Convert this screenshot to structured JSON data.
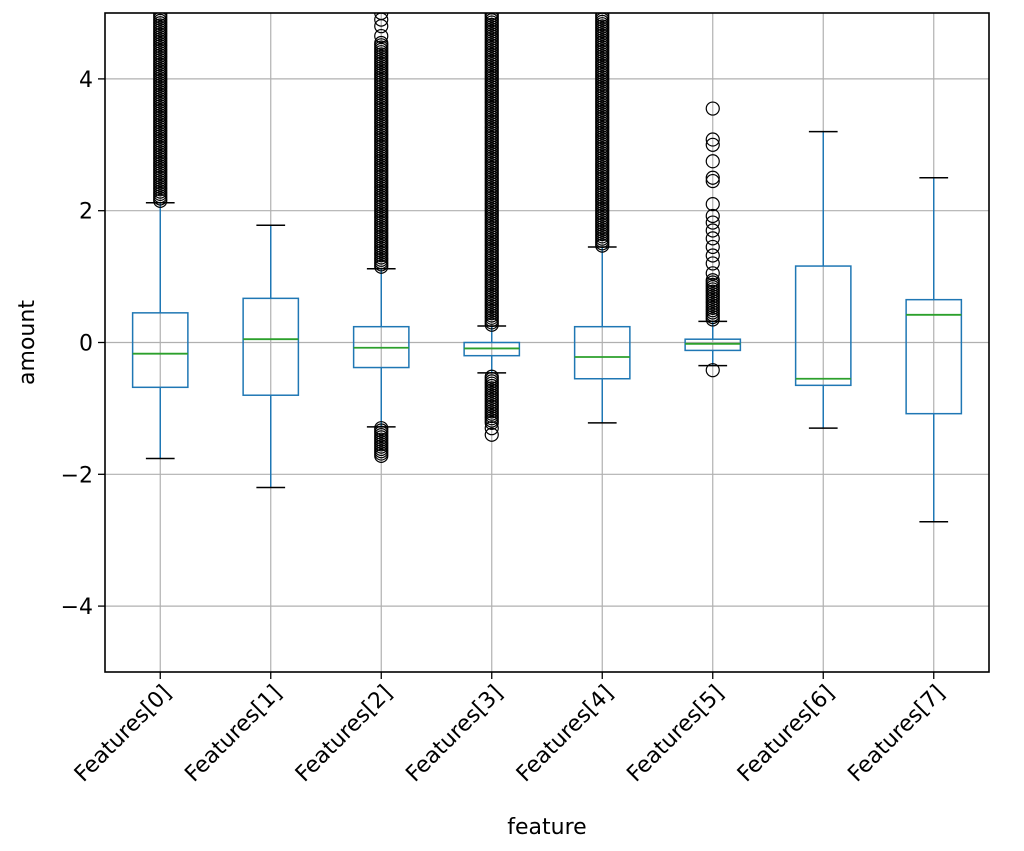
{
  "chart_data": {
    "type": "box",
    "title": "",
    "xlabel": "feature",
    "ylabel": "amount",
    "ylim": [
      -5,
      5
    ],
    "yticks": [
      -4,
      -2,
      0,
      2,
      4
    ],
    "ytick_labels": [
      "−4",
      "−2",
      "0",
      "2",
      "4"
    ],
    "grid": true,
    "categories": [
      "Features[0]",
      "Features[1]",
      "Features[2]",
      "Features[3]",
      "Features[4]",
      "Features[5]",
      "Features[6]",
      "Features[7]"
    ],
    "boxes": [
      {
        "whisker_low": -1.76,
        "q1": -0.68,
        "median": -0.17,
        "q3": 0.45,
        "whisker_high": 2.12,
        "outliers": {
          "dense_ranges": [
            [
              2.15,
              5.0
            ]
          ],
          "points": []
        }
      },
      {
        "whisker_low": -2.2,
        "q1": -0.8,
        "median": 0.05,
        "q3": 0.67,
        "whisker_high": 1.78,
        "outliers": {
          "dense_ranges": [],
          "points": []
        }
      },
      {
        "whisker_low": -1.28,
        "q1": -0.38,
        "median": -0.08,
        "q3": 0.24,
        "whisker_high": 1.12,
        "outliers": {
          "dense_ranges": [
            [
              1.15,
              4.55
            ],
            [
              -1.72,
              -1.3
            ]
          ],
          "points": [
            4.65,
            4.8,
            4.9,
            5.0
          ]
        }
      },
      {
        "whisker_low": -0.46,
        "q1": -0.2,
        "median": -0.09,
        "q3": 0.0,
        "whisker_high": 0.25,
        "outliers": {
          "dense_ranges": [
            [
              0.27,
              5.0
            ],
            [
              -1.22,
              -0.49
            ]
          ],
          "points": [
            -1.3,
            -1.4
          ]
        }
      },
      {
        "whisker_low": -1.22,
        "q1": -0.55,
        "median": -0.22,
        "q3": 0.24,
        "whisker_high": 1.45,
        "outliers": {
          "dense_ranges": [
            [
              1.47,
              5.0
            ]
          ],
          "points": []
        }
      },
      {
        "whisker_low": -0.35,
        "q1": -0.12,
        "median": -0.02,
        "q3": 0.05,
        "whisker_high": 0.32,
        "outliers": {
          "dense_ranges": [
            [
              0.35,
              0.95
            ]
          ],
          "points": [
            1.05,
            1.2,
            1.32,
            1.45,
            1.58,
            1.7,
            1.82,
            1.92,
            2.1,
            2.45,
            2.5,
            2.75,
            3.0,
            3.08,
            3.55,
            -0.42
          ]
        }
      },
      {
        "whisker_low": -1.3,
        "q1": -0.65,
        "median": -0.55,
        "q3": 1.16,
        "whisker_high": 3.2,
        "outliers": {
          "dense_ranges": [],
          "points": []
        }
      },
      {
        "whisker_low": -2.72,
        "q1": -1.08,
        "median": 0.42,
        "q3": 0.65,
        "whisker_high": 2.5,
        "outliers": {
          "dense_ranges": [],
          "points": []
        }
      }
    ],
    "colors": {
      "box": "#1f77b4",
      "median": "#2ca02c",
      "grid": "#b0b0b0",
      "flier": "#000000",
      "axes": "#000000"
    }
  }
}
